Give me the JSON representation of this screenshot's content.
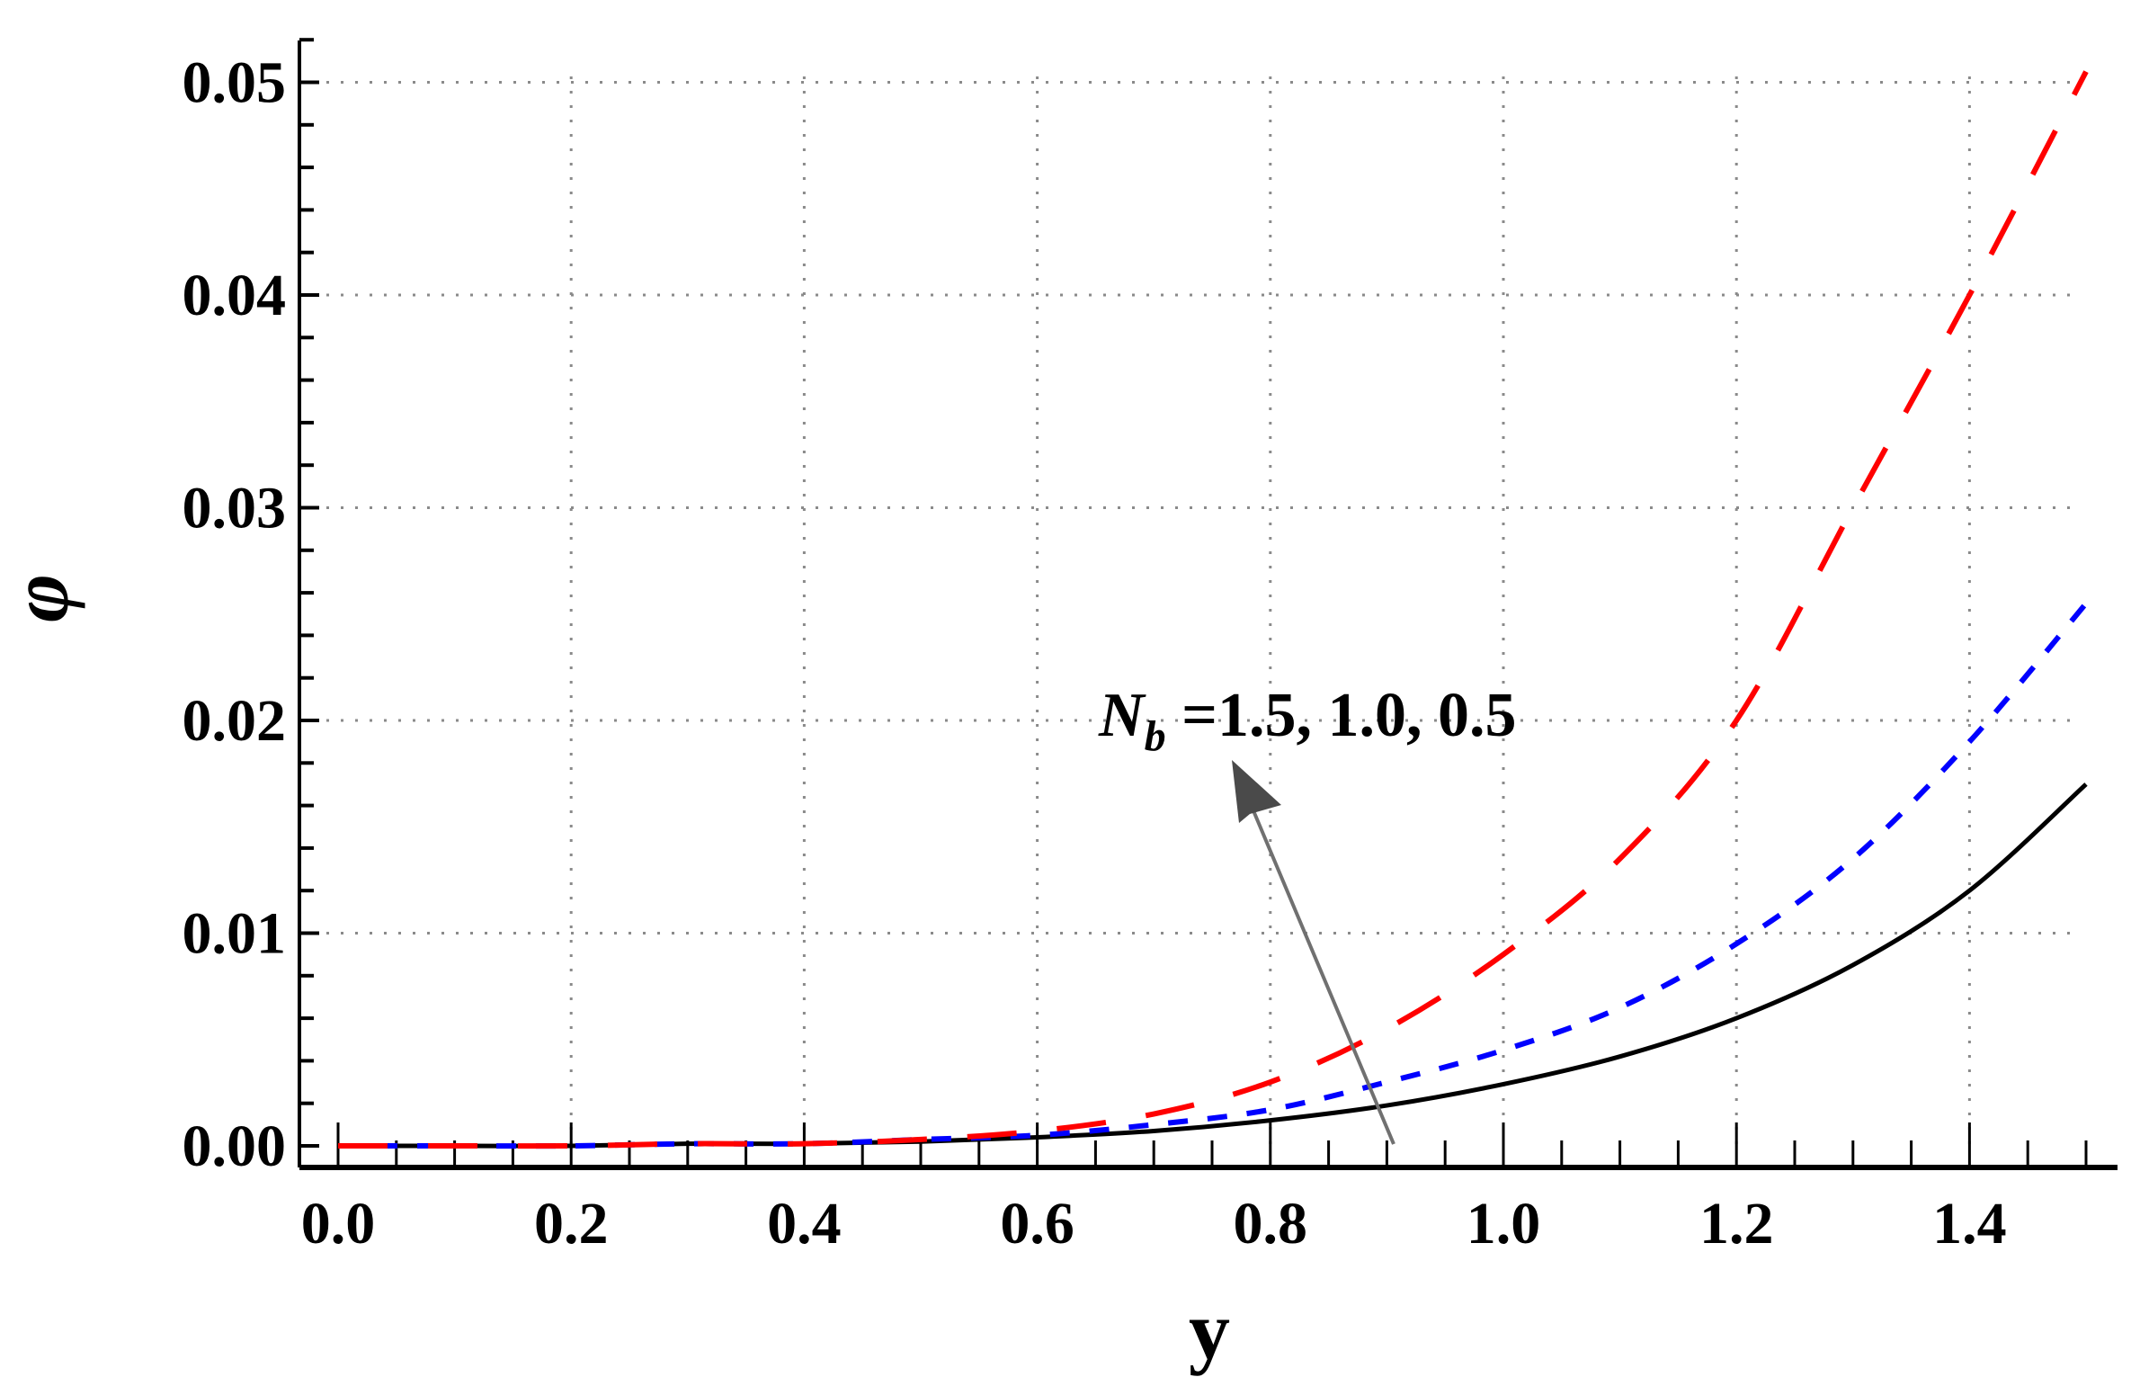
{
  "chart_data": {
    "type": "line",
    "title": "",
    "xlabel": "y",
    "ylabel": "φ",
    "xlim": [
      0.0,
      1.5
    ],
    "ylim": [
      0.0,
      0.052
    ],
    "grid": true,
    "legend_position": "none",
    "x_ticks": [
      "0.0",
      "0.2",
      "0.4",
      "0.6",
      "0.8",
      "1.0",
      "1.2",
      "1.4"
    ],
    "y_ticks": [
      "0.00",
      "0.01",
      "0.02",
      "0.03",
      "0.04",
      "0.05"
    ],
    "annotation": {
      "text_main": "N",
      "text_sub": "b",
      "text_rest": " =1.5, 1.0, 0.5",
      "arrow": "points upward, direction of decreasing N_b"
    },
    "x": [
      0.0,
      0.1,
      0.2,
      0.3,
      0.4,
      0.5,
      0.6,
      0.7,
      0.8,
      0.9,
      1.0,
      1.1,
      1.2,
      1.3,
      1.4,
      1.5
    ],
    "series": [
      {
        "name": "N_b = 1.5",
        "color": "#000000",
        "style": "solid",
        "values": [
          0.0,
          0.0,
          0.0,
          0.0001,
          0.0001,
          0.0002,
          0.0004,
          0.0007,
          0.0012,
          0.0019,
          0.0029,
          0.0042,
          0.006,
          0.0085,
          0.012,
          0.017
        ]
      },
      {
        "name": "N_b = 1.0",
        "color": "#0000ff",
        "style": "dotted",
        "values": [
          0.0,
          0.0,
          0.0,
          0.0001,
          0.0001,
          0.0003,
          0.0005,
          0.001,
          0.0017,
          0.003,
          0.0045,
          0.0065,
          0.0095,
          0.0135,
          0.019,
          0.0255
        ]
      },
      {
        "name": "N_b = 0.5",
        "color": "#ff0000",
        "style": "dashed",
        "values": [
          0.0,
          0.0,
          0.0,
          0.0001,
          0.0001,
          0.0003,
          0.0007,
          0.0015,
          0.003,
          0.0055,
          0.009,
          0.0135,
          0.02,
          0.03,
          0.04,
          0.0505
        ]
      }
    ]
  }
}
